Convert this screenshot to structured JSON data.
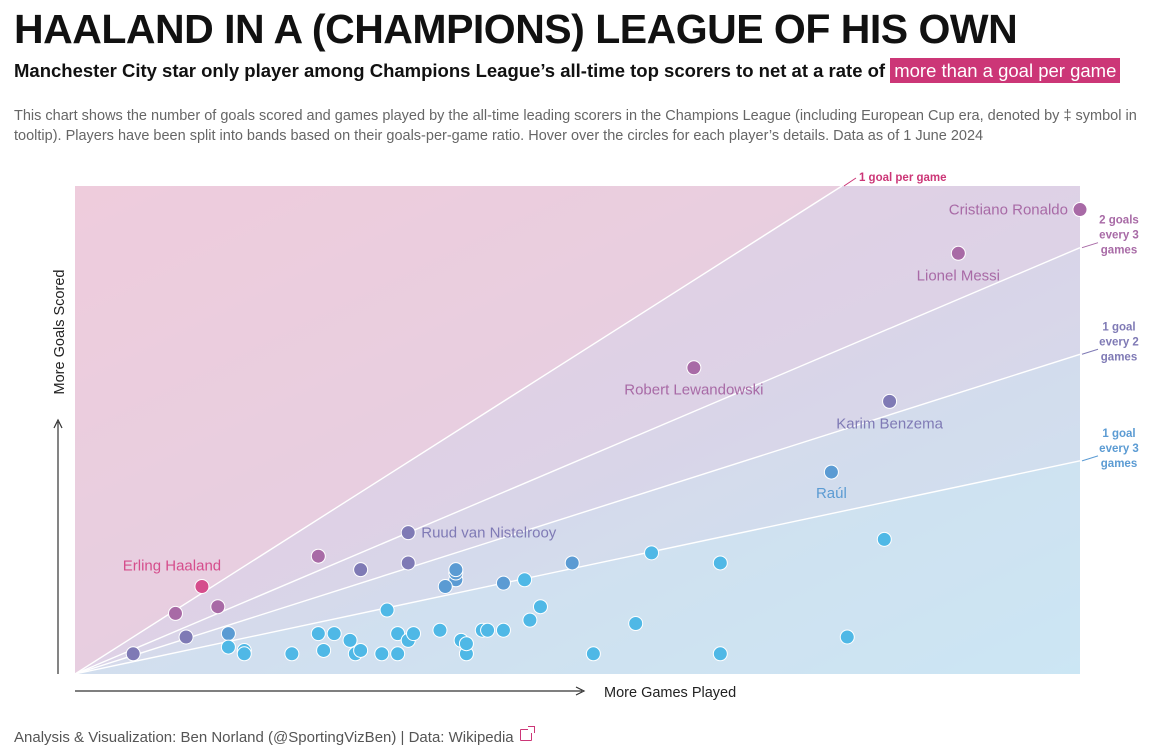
{
  "header": {
    "title": "HAALAND IN A (CHAMPIONS) LEAGUE OF HIS OWN",
    "subtitle_main": "Manchester City star only player among Champions League’s all-time top scorers to net at a rate of ",
    "subtitle_highlight": "more than a goal per game",
    "description": "This chart shows the number of goals scored and games played by the all-time leading scorers in the Champions League (including European Cup era, denoted by ‡ symbol in tooltip). Players have been split into bands based on their goals-per-game ratio. Hover over the circles for each player’s details. Data as of 1 June 2024"
  },
  "footer": {
    "credit": "Analysis & Visualization: Ben Norland (@SportingVizBen) | Data: Wikipedia"
  },
  "colors": {
    "accent": "#cc3677",
    "band_above_1": "#d54d8c",
    "band_2_3_to_1": "#a86aa6",
    "band_1_2_to_2_3": "#7f7ab5",
    "band_1_3_to_1_2": "#5b9bd3",
    "band_below_1_3": "#4fb8e6"
  },
  "chart_data": {
    "type": "scatter",
    "xlabel": "More Games Played",
    "ylabel": "More Goals Scored",
    "xlim": [
      0,
      190
    ],
    "ylim": [
      0,
      145
    ],
    "grid": false,
    "reference_lines": [
      {
        "ratio": 1,
        "label": [
          "1 goal per game"
        ],
        "color": "#cc3677"
      },
      {
        "ratio": 0.6667,
        "label": [
          "2 goals",
          "every 3",
          "games"
        ],
        "color": "#a86aa6"
      },
      {
        "ratio": 0.5,
        "label": [
          "1 goal",
          "every 2",
          "games"
        ],
        "color": "#7f7ab5"
      },
      {
        "ratio": 0.3333,
        "label": [
          "1 goal",
          "every 3",
          "games"
        ],
        "color": "#5b9bd3"
      }
    ],
    "points": [
      {
        "x": 190,
        "y": 138,
        "label": "Cristiano Ronaldo"
      },
      {
        "x": 167,
        "y": 125,
        "label": "Lionel Messi"
      },
      {
        "x": 117,
        "y": 91,
        "label": "Robert Lewandowski"
      },
      {
        "x": 154,
        "y": 81,
        "label": "Karim Benzema"
      },
      {
        "x": 143,
        "y": 60,
        "label": "Raúl"
      },
      {
        "x": 63,
        "y": 42,
        "label": "Ruud van Nistelrooy"
      },
      {
        "x": 24,
        "y": 26,
        "label": "Erling Haaland"
      },
      {
        "x": 153,
        "y": 40
      },
      {
        "x": 109,
        "y": 36
      },
      {
        "x": 122,
        "y": 33
      },
      {
        "x": 94,
        "y": 33
      },
      {
        "x": 63,
        "y": 33
      },
      {
        "x": 46,
        "y": 35
      },
      {
        "x": 54,
        "y": 31
      },
      {
        "x": 72,
        "y": 28
      },
      {
        "x": 72,
        "y": 30
      },
      {
        "x": 72,
        "y": 31
      },
      {
        "x": 70,
        "y": 26
      },
      {
        "x": 81,
        "y": 27
      },
      {
        "x": 85,
        "y": 28
      },
      {
        "x": 88,
        "y": 20
      },
      {
        "x": 59,
        "y": 19
      },
      {
        "x": 27,
        "y": 20
      },
      {
        "x": 19,
        "y": 18
      },
      {
        "x": 29,
        "y": 12
      },
      {
        "x": 29,
        "y": 8
      },
      {
        "x": 32,
        "y": 7
      },
      {
        "x": 32,
        "y": 6
      },
      {
        "x": 11,
        "y": 6
      },
      {
        "x": 21,
        "y": 11
      },
      {
        "x": 41,
        "y": 6
      },
      {
        "x": 46,
        "y": 12
      },
      {
        "x": 47,
        "y": 7
      },
      {
        "x": 49,
        "y": 12
      },
      {
        "x": 52,
        "y": 10
      },
      {
        "x": 53,
        "y": 6
      },
      {
        "x": 54,
        "y": 7
      },
      {
        "x": 58,
        "y": 6
      },
      {
        "x": 61,
        "y": 6
      },
      {
        "x": 61,
        "y": 12
      },
      {
        "x": 63,
        "y": 10
      },
      {
        "x": 64,
        "y": 12
      },
      {
        "x": 69,
        "y": 13
      },
      {
        "x": 73,
        "y": 10
      },
      {
        "x": 74,
        "y": 6
      },
      {
        "x": 77,
        "y": 13
      },
      {
        "x": 78,
        "y": 13
      },
      {
        "x": 81,
        "y": 13
      },
      {
        "x": 86,
        "y": 16
      },
      {
        "x": 74,
        "y": 9
      },
      {
        "x": 98,
        "y": 6
      },
      {
        "x": 106,
        "y": 15
      },
      {
        "x": 122,
        "y": 6
      },
      {
        "x": 146,
        "y": 11
      }
    ]
  }
}
